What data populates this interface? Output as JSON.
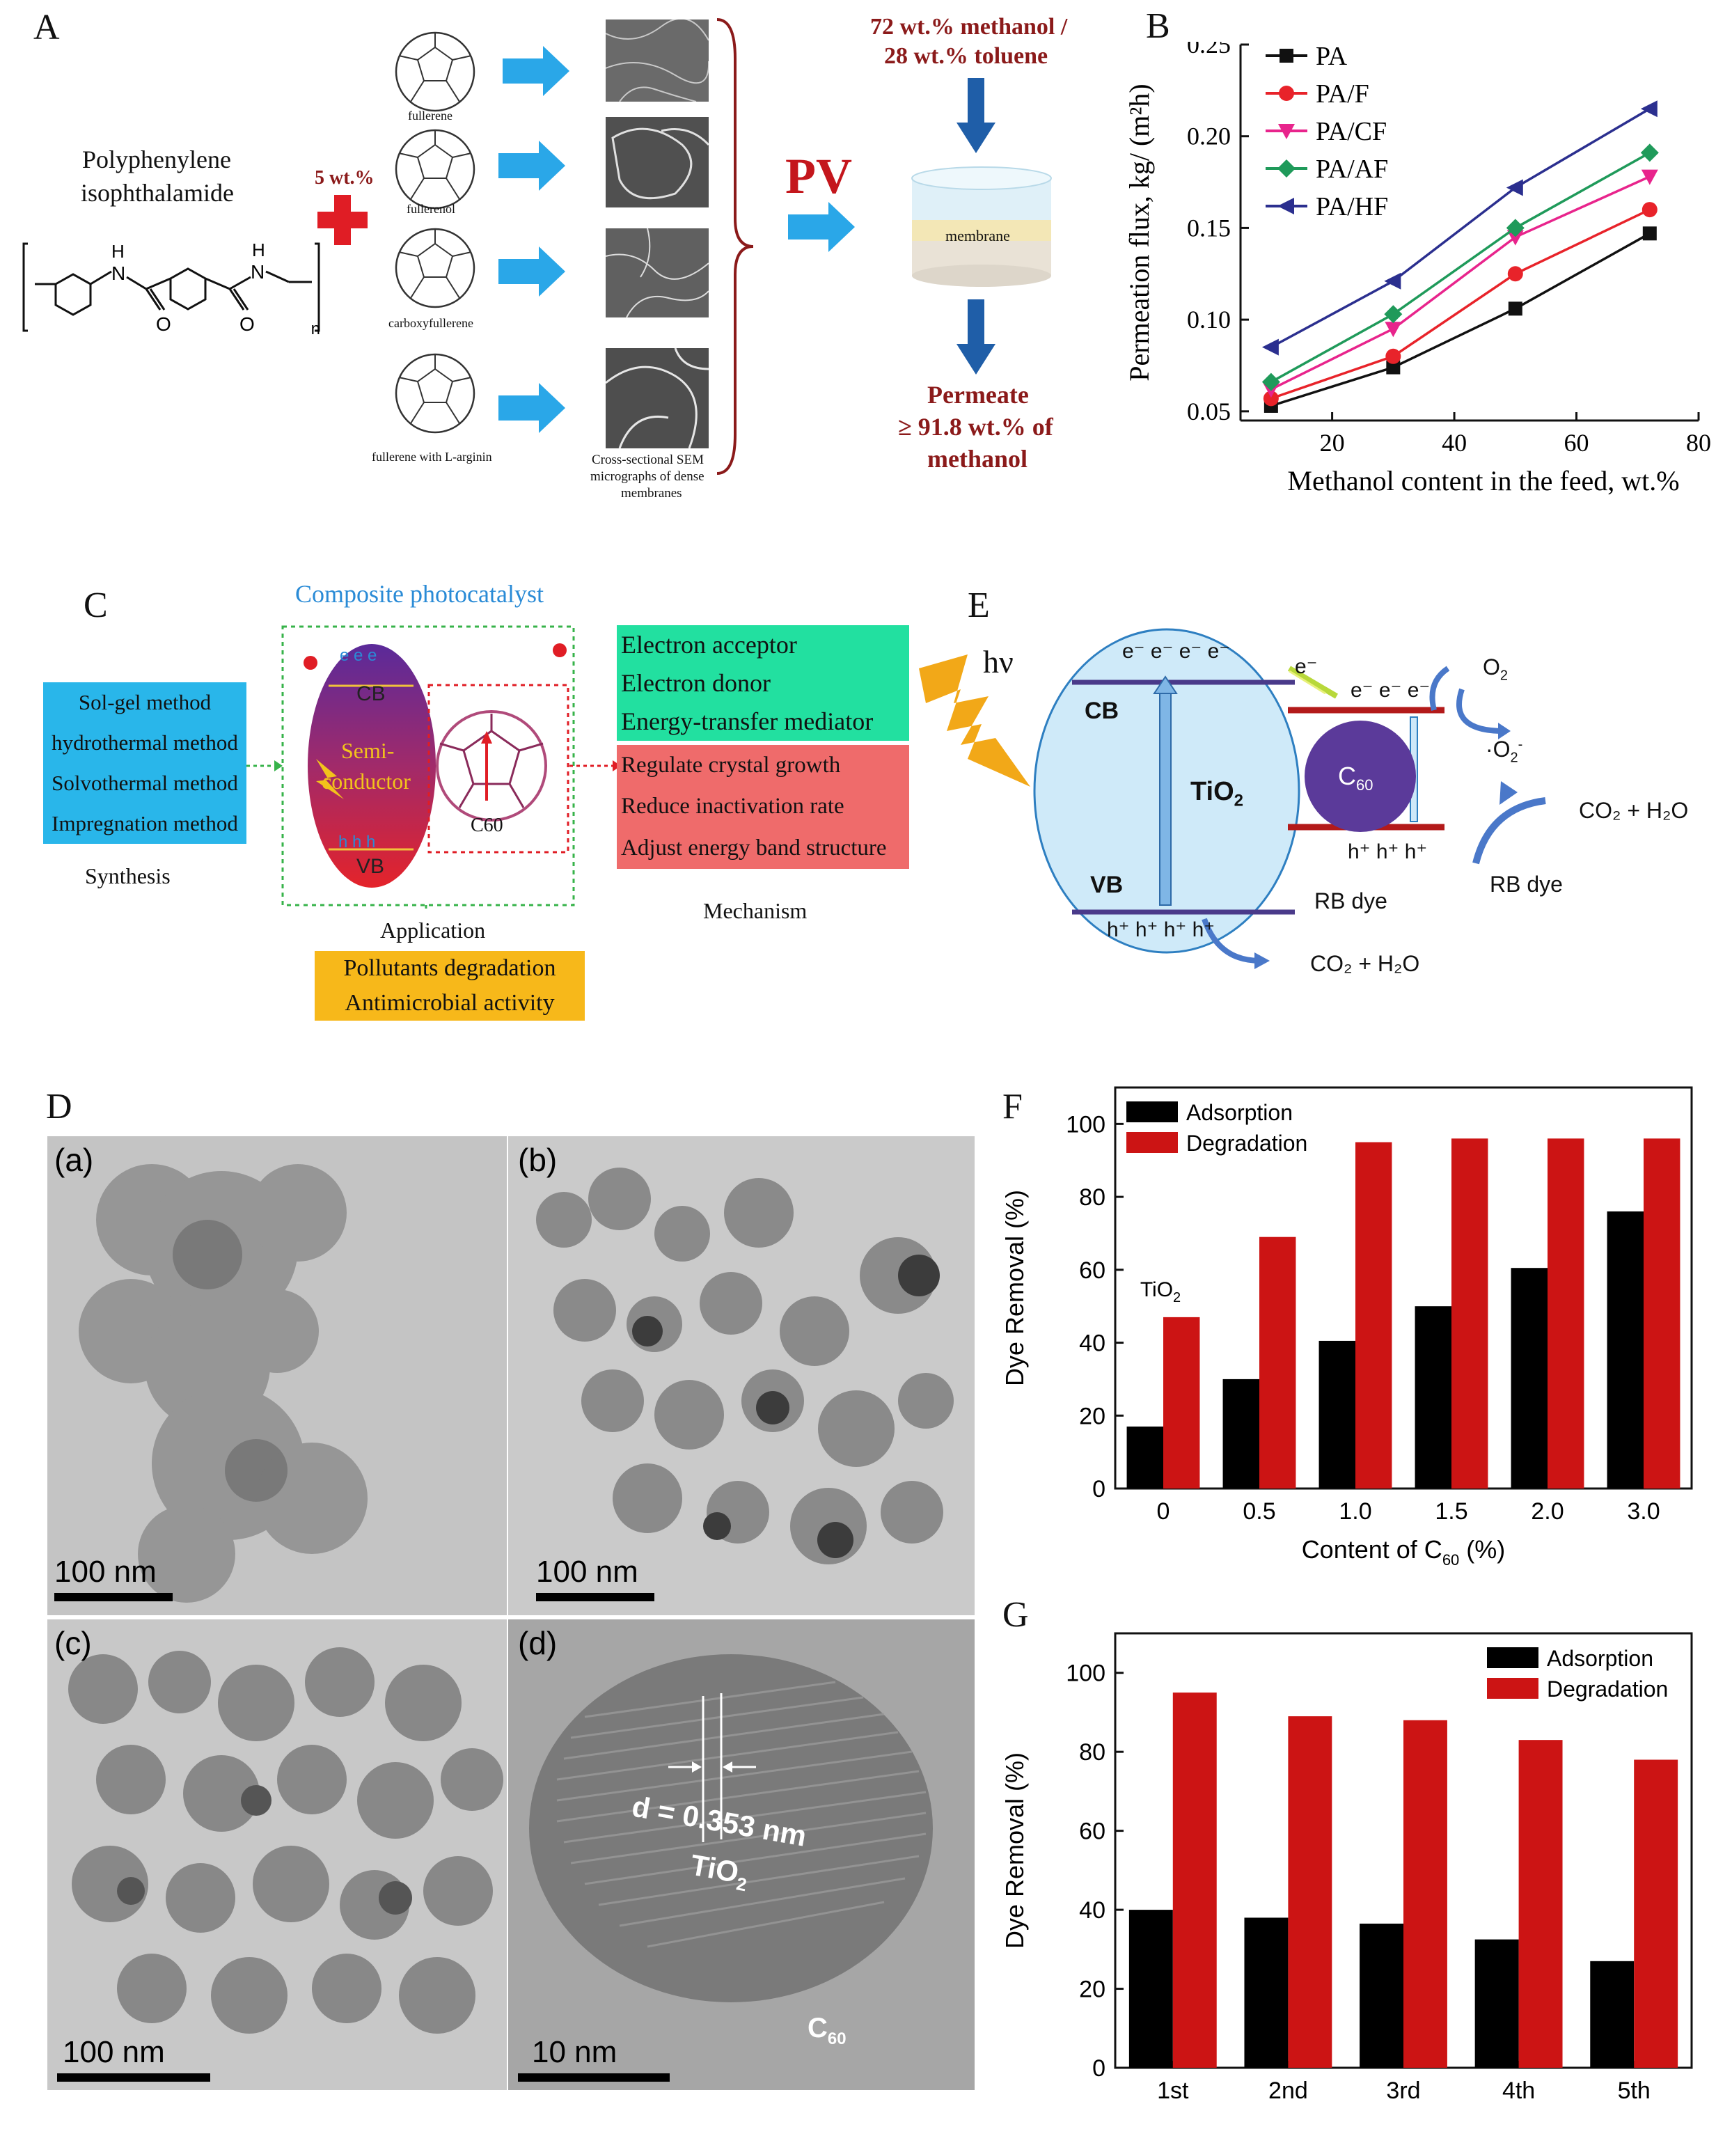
{
  "colors": {
    "maroon": "#8b1a1a",
    "arrow_blue": "#2aa7e8",
    "pa": "#111111",
    "pa_f": "#e8232a",
    "pa_cf": "#e8248c",
    "pa_af": "#1f9a5a",
    "pa_hf": "#2b2f8f",
    "cyan_box": "#29b6ea",
    "green_box": "#22e0a0",
    "red_box": "#ef6b6b",
    "orange_box": "#f7b81a",
    "bar_black": "#000000",
    "bar_red": "#cc1414"
  },
  "panel_labels": {
    "a": "A",
    "b": "B",
    "c": "C",
    "d": "D",
    "e": "E",
    "f": "F",
    "g": "G"
  },
  "panel_a": {
    "polymer_name_line1": "Polyphenylene",
    "polymer_name_line2": "isophthalamide",
    "plus_label": "5 wt.%",
    "nh": "H",
    "n_atom": "N",
    "o_atom": "O",
    "subscript_n": "n",
    "fullerenes": [
      "fullerene",
      "fullerenol",
      "carboxyfullerene",
      "fullerene with L-arginin"
    ],
    "sem_caption_line1": "Cross-sectional SEM",
    "sem_caption_line2": "micrographs of dense",
    "sem_caption_line3": "membranes",
    "pv_label": "PV",
    "feed_line1": "72 wt.% methanol /",
    "feed_line2": "28 wt.% toluene",
    "membrane_label": "membrane",
    "permeate_line1": "Permeate",
    "permeate_line2": "≥ 91.8 wt.% of",
    "permeate_line3": "methanol"
  },
  "panel_c": {
    "title": "Composite photocatalyst",
    "synthesis_items": [
      "Sol-gel   method",
      "hydrothermal method",
      "Solvothermal method",
      "Impregnation method"
    ],
    "synthesis_label": "Synthesis",
    "cb": "CB",
    "vb": "VB",
    "semi1": "Semi-",
    "semi2": "conductor",
    "e_symbols": "e   e   e",
    "h_symbols": "h   h   h",
    "c60": "C60",
    "role_items": [
      "Electron  acceptor",
      "Electron  donor",
      "Energy-transfer mediator"
    ],
    "effect_items": [
      "Regulate crystal growth",
      "Reduce inactivation rate",
      "Adjust energy band structure"
    ],
    "mechanism_label": "Mechanism",
    "application_label": "Application",
    "application_items": [
      "Pollutants degradation",
      "Antimicrobial activity"
    ]
  },
  "panel_e": {
    "hv": "hν",
    "cb": "CB",
    "vb": "VB",
    "tio2": "TiO",
    "electrons": "e⁻ e⁻ e⁻ e⁻",
    "holes": "h⁺ h⁺ h⁺ h⁺",
    "e_transfer": "e⁻",
    "c60_electrons": "e⁻ e⁻ e⁻",
    "c60_holes": "h⁺ h⁺ h⁺",
    "c60": "C",
    "o2": "O",
    "o2_radical": "·O",
    "co2_h2o": "CO₂ + H₂O",
    "rb_dye": "RB dye"
  },
  "panel_d": {
    "sub_labels": [
      "(a)",
      "(b)",
      "(c)",
      "(d)"
    ],
    "scale_bars": [
      "100 nm",
      "100 nm",
      "100 nm",
      "10 nm"
    ],
    "lattice": "d = 0.353 nm",
    "tio2": "TiO",
    "c60": "C"
  },
  "chart_data": [
    {
      "id": "B",
      "type": "line",
      "xlabel": "Methanol content in the feed, wt.%",
      "ylabel": "Permeation flux, kg/ (m²h)",
      "xlim": [
        5,
        80
      ],
      "ylim": [
        0.045,
        0.25
      ],
      "x_ticks": [
        20,
        40,
        60,
        80
      ],
      "y_ticks": [
        0.05,
        0.1,
        0.15,
        0.2,
        0.25
      ],
      "x_tick_labels": [
        "20",
        "40",
        "60",
        "80"
      ],
      "y_tick_labels": [
        "0.05",
        "0.10",
        "0.15",
        "0.20",
        "0.25"
      ],
      "x": [
        10,
        30,
        50,
        72
      ],
      "legend_position": "top-left",
      "series": [
        {
          "name": "PA",
          "values": [
            0.053,
            0.074,
            0.106,
            0.147
          ],
          "color": "#111111",
          "marker": "square"
        },
        {
          "name": "PA/F",
          "values": [
            0.057,
            0.08,
            0.125,
            0.16
          ],
          "color": "#e8232a",
          "marker": "circle"
        },
        {
          "name": "PA/CF",
          "values": [
            0.062,
            0.095,
            0.145,
            0.178
          ],
          "color": "#e8248c",
          "marker": "triangle-down"
        },
        {
          "name": "PA/AF",
          "values": [
            0.066,
            0.103,
            0.15,
            0.191
          ],
          "color": "#1f9a5a",
          "marker": "diamond"
        },
        {
          "name": "PA/HF",
          "values": [
            0.085,
            0.121,
            0.172,
            0.215
          ],
          "color": "#2b2f8f",
          "marker": "triangle-left"
        }
      ]
    },
    {
      "id": "F",
      "type": "bar",
      "xlabel": "Content of C",
      "ylabel": "Dye Removal (%)",
      "ylim": [
        0,
        110
      ],
      "y_ticks": [
        0,
        20,
        40,
        60,
        80,
        100
      ],
      "y_tick_labels": [
        "0",
        "20",
        "40",
        "60",
        "80",
        "100"
      ],
      "categories": [
        "0",
        "0.5",
        "1.0",
        "1.5",
        "2.0",
        "3.0"
      ],
      "annotation": "TiO",
      "legend_position": "top-left",
      "series": [
        {
          "name": "Adsorption",
          "values": [
            17,
            30,
            40.5,
            50,
            60.5,
            76
          ],
          "color": "#000000"
        },
        {
          "name": "Degradation",
          "values": [
            47,
            69,
            95,
            96,
            96,
            96
          ],
          "color": "#cc1414"
        }
      ]
    },
    {
      "id": "G",
      "type": "bar",
      "xlabel": "",
      "ylabel": "Dye Removal (%)",
      "ylim": [
        0,
        110
      ],
      "y_ticks": [
        0,
        20,
        40,
        60,
        80,
        100
      ],
      "y_tick_labels": [
        "0",
        "20",
        "40",
        "60",
        "80",
        "100"
      ],
      "categories": [
        "1st",
        "2nd",
        "3rd",
        "4th",
        "5th"
      ],
      "legend_position": "top-right",
      "series": [
        {
          "name": "Adsorption",
          "values": [
            40,
            38,
            36.5,
            32.5,
            27
          ],
          "color": "#000000"
        },
        {
          "name": "Degradation",
          "values": [
            95,
            89,
            88,
            83,
            78
          ],
          "color": "#cc1414"
        }
      ]
    }
  ]
}
